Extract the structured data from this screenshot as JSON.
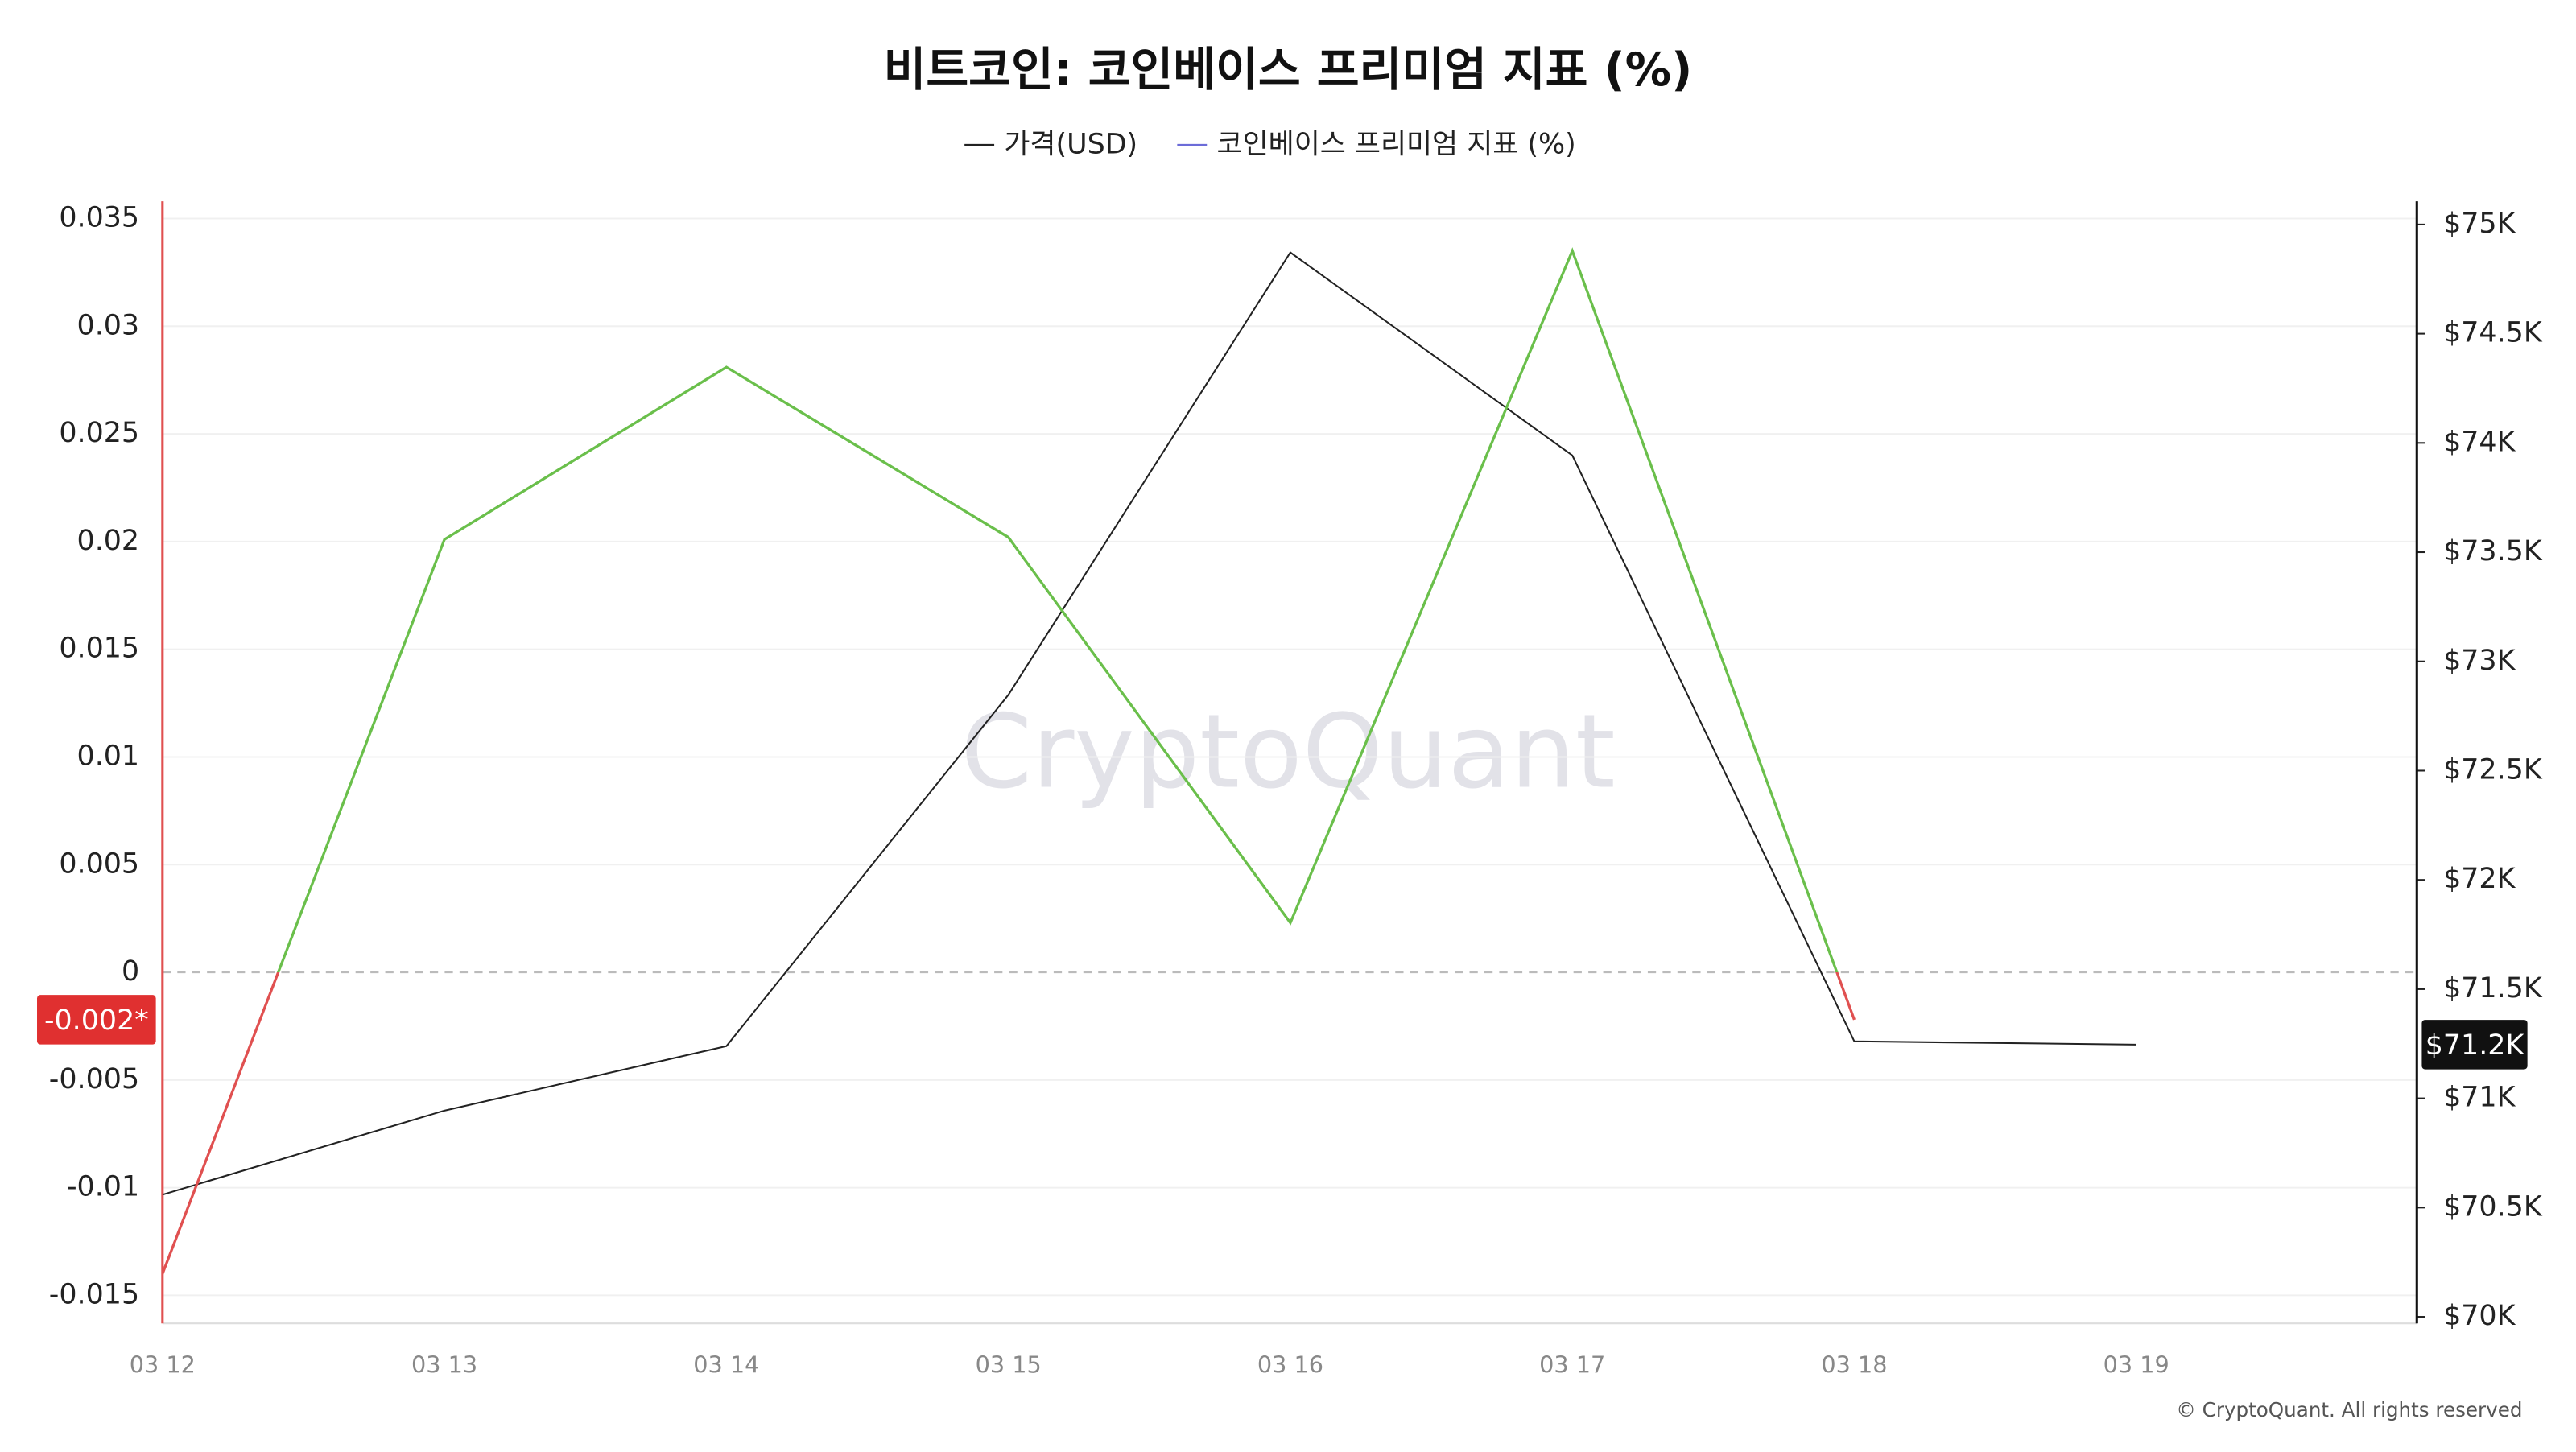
{
  "chart_data": {
    "type": "line",
    "title": "비트코인: 코인베이스 프리미엄 지표 (%)",
    "watermark": "CryptoQuant",
    "copyright": "© CryptoQuant. All rights reserved",
    "categories": [
      "03 12",
      "03 13",
      "03 14",
      "03 15",
      "03 16",
      "03 17",
      "03 18",
      "03 19"
    ],
    "series": [
      {
        "name": "가격(USD)",
        "color": "#222222",
        "axis": "y2",
        "values": [
          70559,
          70944,
          71239,
          72847,
          74872,
          73943,
          71261,
          71246
        ],
        "value_labels": [
          null,
          null,
          null,
          null,
          null,
          null,
          null,
          "$71.2K"
        ]
      },
      {
        "name": "코인베이스 프리미엄 지표 (%)",
        "color": "#6c6cd8",
        "positive_color": "#6abf4b",
        "negative_color": "#e05050",
        "values": [
          -0.014,
          0.0201,
          0.0281,
          0.0202,
          0.0023,
          0.0335,
          -0.0022,
          null
        ],
        "value_labels": [
          null,
          null,
          null,
          null,
          null,
          null,
          "-0.002*",
          null
        ]
      }
    ],
    "ylim": [
      -0.0163,
      0.0358
    ],
    "yticks": [
      -0.015,
      -0.01,
      -0.005,
      0,
      0.005,
      0.01,
      0.015,
      0.02,
      0.025,
      0.03,
      0.035
    ],
    "y2lim": [
      69970,
      75106
    ],
    "y2ticks": [
      {
        "value": 70000,
        "label": "$70K"
      },
      {
        "value": 70500,
        "label": "$70.5K"
      },
      {
        "value": 71000,
        "label": "$71K"
      },
      {
        "value": 71500,
        "label": "$71.5K"
      },
      {
        "value": 72000,
        "label": "$72K"
      },
      {
        "value": 72500,
        "label": "$72.5K"
      },
      {
        "value": 73000,
        "label": "$73K"
      },
      {
        "value": 73500,
        "label": "$73.5K"
      },
      {
        "value": 74000,
        "label": "$74K"
      },
      {
        "value": 74500,
        "label": "$74.5K"
      },
      {
        "value": 75000,
        "label": "$75K"
      }
    ],
    "grid": true
  }
}
